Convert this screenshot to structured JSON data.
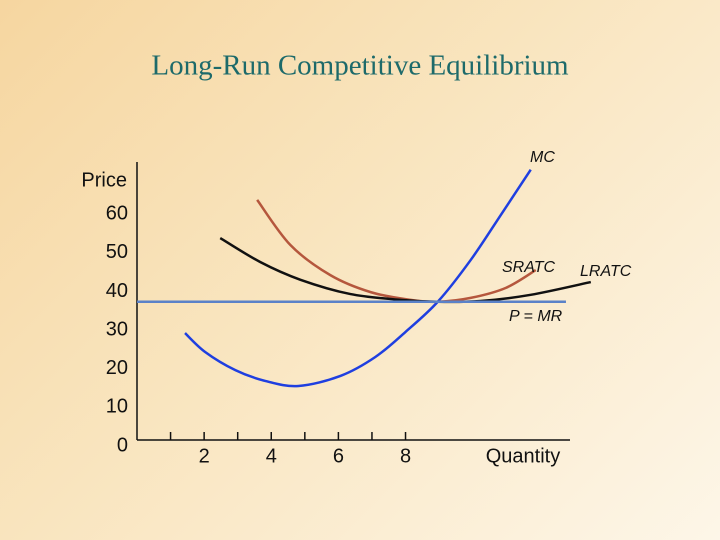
{
  "chart_data": {
    "type": "line",
    "title": "Long-Run Competitive Equilibrium",
    "y_label": "Price",
    "x_label": "Quantity",
    "xlim": [
      0,
      12.9
    ],
    "ylim": [
      0,
      72
    ],
    "xticks": [
      2,
      4,
      6,
      8
    ],
    "minor_xticks": [
      1,
      3,
      5,
      7
    ],
    "yticks": [
      0,
      10,
      20,
      30,
      40,
      50,
      60
    ],
    "series": [
      {
        "name": "MC",
        "color": "#1f3fe0",
        "x": [
          1.43,
          2.03,
          2.93,
          3.82,
          4.81,
          6.06,
          7.1,
          8,
          8.96,
          9.94,
          10.84,
          11.73
        ],
        "values": [
          27.7,
          22.8,
          18.1,
          15.3,
          14.0,
          16.6,
          21.5,
          28,
          35.8,
          46.6,
          58.3,
          70
        ]
      },
      {
        "name": "SRATC",
        "color": "#b5573d",
        "x": [
          3.58,
          4.57,
          5.76,
          6.96,
          8.15,
          8.96,
          9.94,
          10.99,
          11.88
        ],
        "values": [
          62.2,
          50.5,
          42.7,
          38.3,
          36.3,
          35.8,
          36.8,
          39.4,
          44
        ]
      },
      {
        "name": "LRATC",
        "color": "#111111",
        "x": [
          2.48,
          3.67,
          4.87,
          6.36,
          7.85,
          8.96,
          10.24,
          11.73,
          13.52
        ],
        "values": [
          52.3,
          46.1,
          41.5,
          37.8,
          36.3,
          35.8,
          36,
          37.6,
          40.9
        ]
      },
      {
        "name": "P = MR",
        "color": "#5b82c8",
        "x": [
          0,
          12.78
        ],
        "values": [
          35.8,
          35.8
        ]
      }
    ]
  }
}
